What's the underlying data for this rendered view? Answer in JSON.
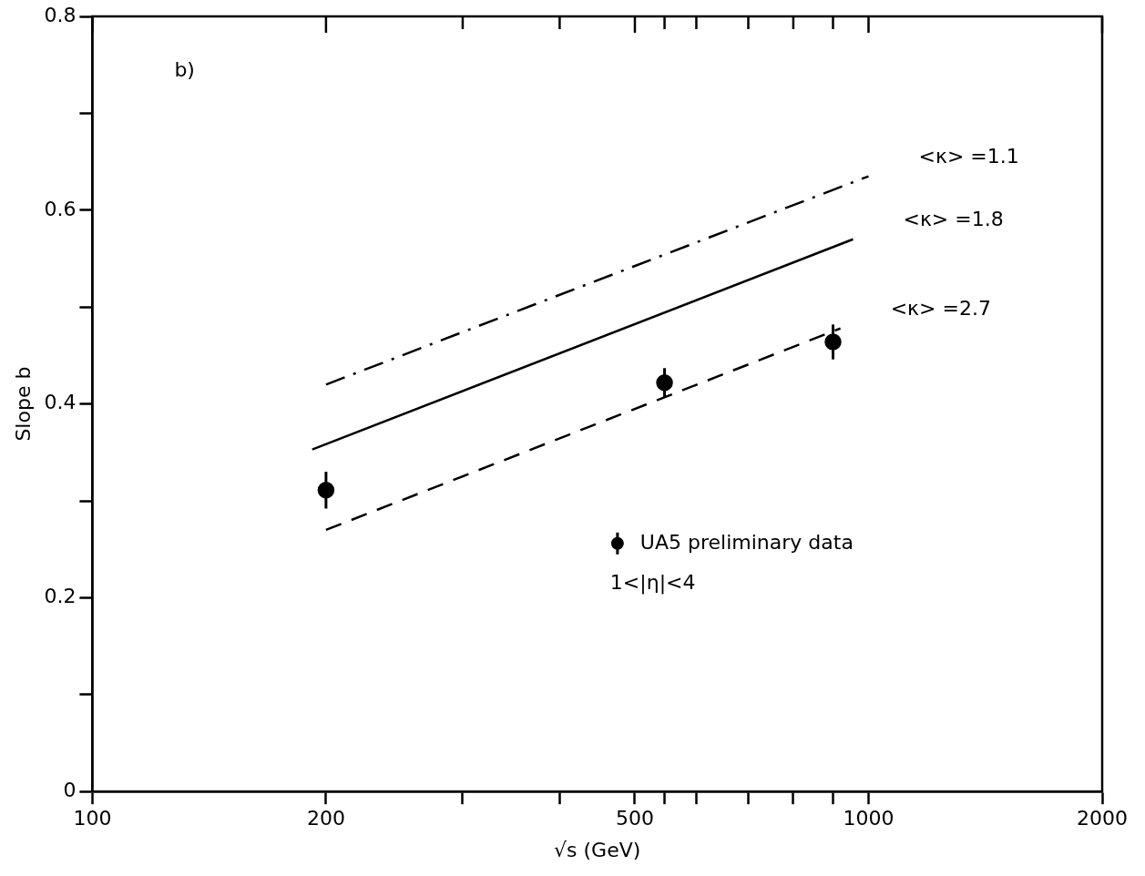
{
  "chart_data": {
    "type": "line",
    "xlabel": "√s (GeV)",
    "ylabel": "Slope b",
    "log": "x",
    "xlim": [
      100,
      2000
    ],
    "ylim": [
      0,
      0.8
    ],
    "xticks": [
      100,
      200,
      {
        "value": 300,
        "label": null
      },
      {
        "value": 400,
        "label": null
      },
      500,
      {
        "value": 546,
        "label": null
      },
      {
        "value": 600,
        "label": null
      },
      {
        "value": 700,
        "label": null
      },
      {
        "value": 800,
        "label": null
      },
      {
        "value": 900,
        "label": null
      },
      1000,
      2000
    ],
    "yticks": [
      0,
      {
        "value": 0.1,
        "label": null
      },
      0.2,
      {
        "value": 0.3,
        "label": null
      },
      0.4,
      {
        "value": 0.5,
        "label": null
      },
      0.6,
      {
        "value": 0.7,
        "label": null
      },
      0.8
    ],
    "grid": false,
    "legend": "bottom",
    "annotations": [
      "b)",
      "1<|η|<4"
    ],
    "series": [
      {
        "name": "<κ> =1.1",
        "color": "#000000",
        "line_style": "dashdot",
        "marker": "none",
        "x": [
          200,
          1000
        ],
        "values": [
          0.42,
          0.635
        ]
      },
      {
        "name": "<κ> =1.8",
        "color": "#000000",
        "line_style": "solid",
        "marker": "none",
        "x": [
          192,
          955
        ],
        "values": [
          0.353,
          0.57
        ]
      },
      {
        "name": "<κ> =2.7",
        "color": "#000000",
        "line_style": "dashed",
        "marker": "none",
        "x": [
          200,
          920
        ],
        "values": [
          0.27,
          0.478
        ]
      },
      {
        "name": "UA5 preliminary data",
        "type": "scatter",
        "color": "#000000",
        "marker": "circle",
        "x": [
          200,
          546,
          900
        ],
        "values": [
          0.311,
          0.422,
          0.464
        ],
        "errors": [
          0.019,
          0.015,
          0.018
        ]
      }
    ]
  }
}
